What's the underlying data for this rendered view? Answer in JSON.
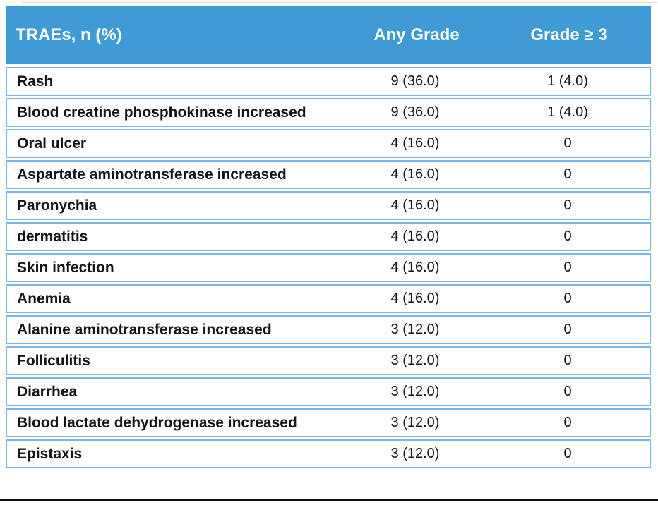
{
  "colors": {
    "header_bg": "#3F9AD5",
    "row_border": "#7DB6E4",
    "header_text": "#FFFFFF",
    "body_text": "#141414",
    "bottom_rule": "#111111"
  },
  "table": {
    "columns": {
      "trae": "TRAEs, n (%)",
      "any_grade": "Any Grade",
      "grade_ge3": "Grade ≥ 3"
    },
    "rows": [
      {
        "trae": "Rash",
        "any_grade": "9 (36.0)",
        "grade_ge3": "1 (4.0)"
      },
      {
        "trae": "Blood creatine phosphokinase increased",
        "any_grade": "9 (36.0)",
        "grade_ge3": "1 (4.0)"
      },
      {
        "trae": "Oral ulcer",
        "any_grade": "4 (16.0)",
        "grade_ge3": "0"
      },
      {
        "trae": "Aspartate aminotransferase increased",
        "any_grade": "4 (16.0)",
        "grade_ge3": "0"
      },
      {
        "trae": "Paronychia",
        "any_grade": "4 (16.0)",
        "grade_ge3": "0"
      },
      {
        "trae": "dermatitis",
        "any_grade": "4 (16.0)",
        "grade_ge3": "0"
      },
      {
        "trae": "Skin infection",
        "any_grade": "4 (16.0)",
        "grade_ge3": "0"
      },
      {
        "trae": "Anemia",
        "any_grade": "4 (16.0)",
        "grade_ge3": "0"
      },
      {
        "trae": "Alanine aminotransferase increased",
        "any_grade": "3 (12.0)",
        "grade_ge3": "0"
      },
      {
        "trae": "Folliculitis",
        "any_grade": "3 (12.0)",
        "grade_ge3": "0"
      },
      {
        "trae": "Diarrhea",
        "any_grade": "3 (12.0)",
        "grade_ge3": "0"
      },
      {
        "trae": "Blood lactate dehydrogenase increased",
        "any_grade": "3 (12.0)",
        "grade_ge3": "0"
      },
      {
        "trae": "Epistaxis",
        "any_grade": "3 (12.0)",
        "grade_ge3": "0"
      }
    ]
  }
}
